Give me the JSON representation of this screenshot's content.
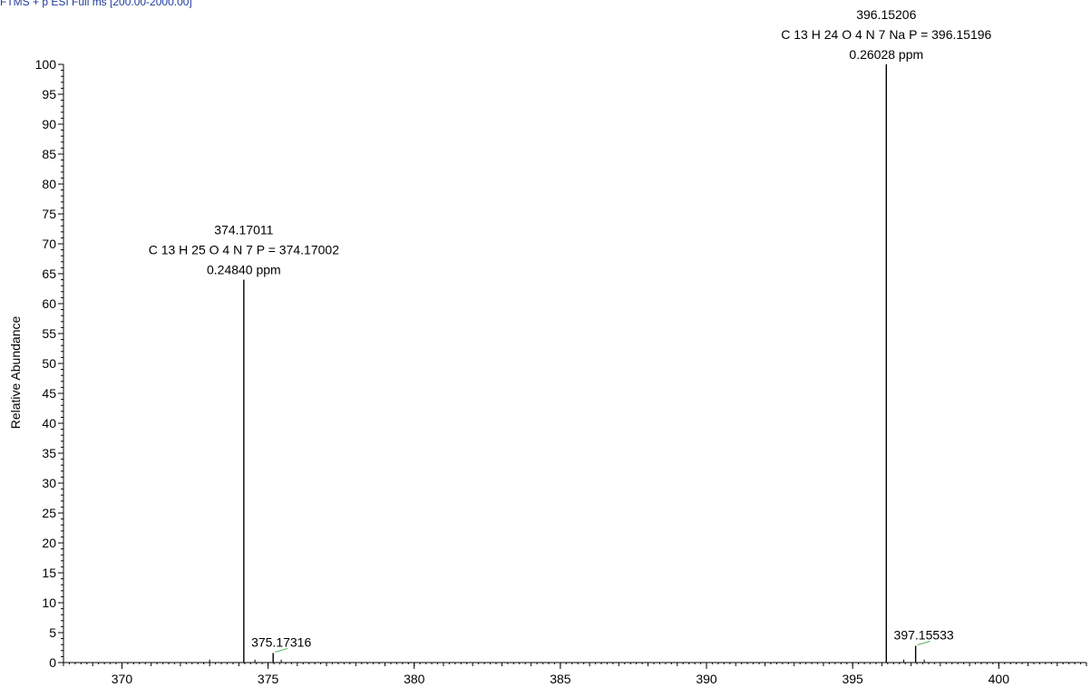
{
  "header": {
    "text": "FTMS + p ESI Full ms [200.00-2000.00]"
  },
  "colors": {
    "axis": "#000000",
    "peak": "#000000",
    "header": "#1f3a9a",
    "minor_label_mark": "#4caf50"
  },
  "chart_data": {
    "type": "bar",
    "xlabel": "",
    "ylabel": "Relative Abundance",
    "xlim": [
      368,
      403
    ],
    "ylim": [
      0,
      100
    ],
    "x_ticks": [
      370,
      375,
      380,
      385,
      390,
      395,
      400
    ],
    "y_ticks": [
      0,
      5,
      10,
      15,
      20,
      25,
      30,
      35,
      40,
      45,
      50,
      55,
      60,
      65,
      70,
      75,
      80,
      85,
      90,
      95,
      100
    ],
    "grid": false,
    "peaks": [
      {
        "mz": 374.17011,
        "intensity": 64,
        "labels": [
          "374.17011",
          "C 13 H 25 O 4 N 7 P = 374.17002",
          "0.24840 ppm"
        ]
      },
      {
        "mz": 375.17316,
        "intensity": 1.6,
        "labels": [
          "375.17316"
        ]
      },
      {
        "mz": 396.15206,
        "intensity": 100,
        "labels": [
          "396.15206",
          "C 13 H 24 O 4 N 7 Na P = 396.15196",
          "0.26028 ppm"
        ]
      },
      {
        "mz": 397.15533,
        "intensity": 2.8,
        "labels": [
          "397.15533"
        ]
      }
    ]
  }
}
